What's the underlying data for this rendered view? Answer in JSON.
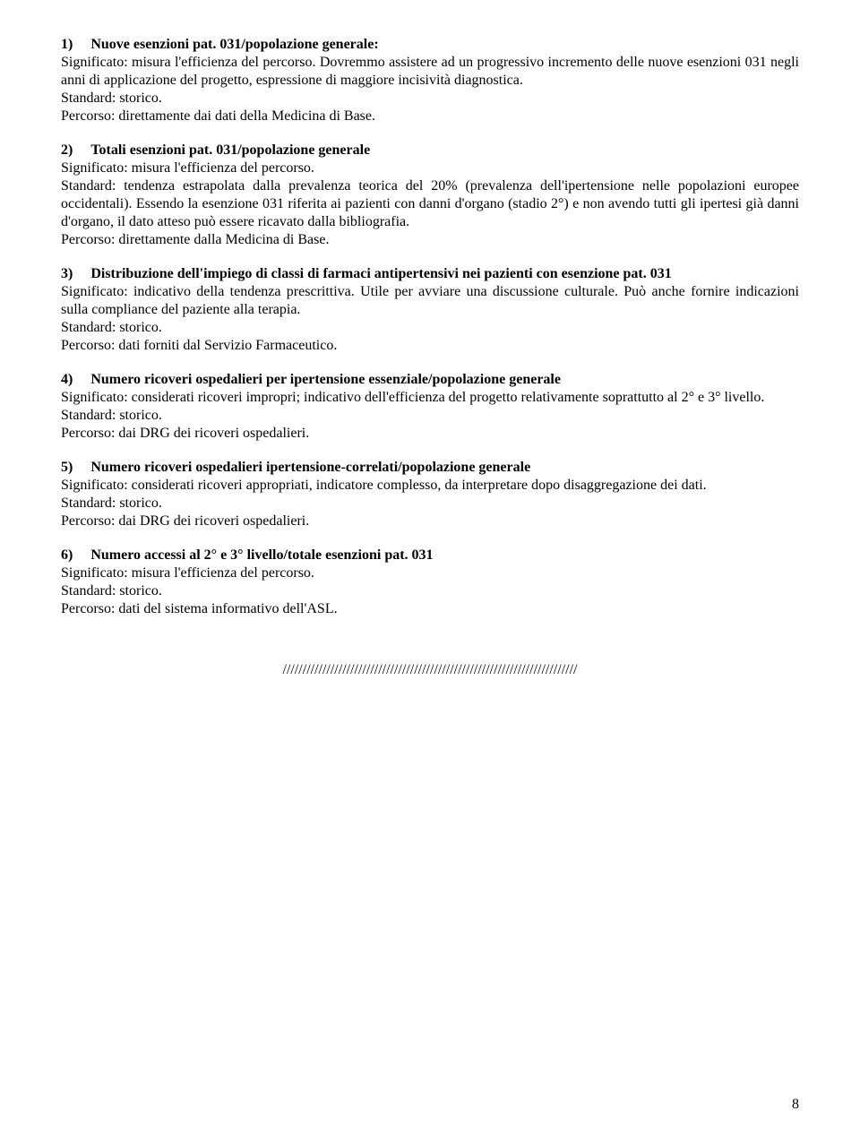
{
  "sections": [
    {
      "index": "1)",
      "title": "Nuove esenzioni pat. 031/popolazione generale:",
      "lines": [
        "Significato: misura l'efficienza del percorso. Dovremmo assistere ad un progressivo incremento delle nuove esenzioni 031 negli anni di applicazione del progetto, espressione di maggiore incisività diagnostica.",
        "Standard: storico.",
        "Percorso: direttamente dai dati della Medicina di Base."
      ]
    },
    {
      "index": "2)",
      "title": "Totali esenzioni pat. 031/popolazione generale",
      "lines": [
        "Significato: misura l'efficienza del percorso.",
        "Standard: tendenza estrapolata dalla prevalenza teorica del 20% (prevalenza dell'ipertensione nelle popolazioni europee occidentali). Essendo la esenzione 031 riferita ai pazienti con danni d'organo (stadio 2°) e non avendo tutti gli ipertesi già danni d'organo, il dato atteso può essere ricavato dalla bibliografia.",
        "Percorso: direttamente dalla Medicina di Base."
      ]
    },
    {
      "index": "3)",
      "title": "Distribuzione dell'impiego di classi di farmaci antipertensivi nei pazienti con esenzione pat. 031",
      "lines": [
        "Significato: indicativo della tendenza prescrittiva. Utile per avviare una discussione culturale. Può anche fornire indicazioni sulla compliance del paziente alla terapia.",
        "Standard: storico.",
        "Percorso: dati forniti dal Servizio Farmaceutico."
      ]
    },
    {
      "index": "4)",
      "title": "Numero ricoveri ospedalieri per ipertensione essenziale/popolazione generale",
      "lines": [
        "Significato: considerati ricoveri impropri; indicativo dell'efficienza del progetto relativamente soprattutto al 2° e 3° livello.",
        "Standard: storico.",
        "Percorso: dai DRG dei ricoveri ospedalieri."
      ]
    },
    {
      "index": "5)",
      "title": "Numero ricoveri ospedalieri ipertensione-correlati/popolazione generale",
      "lines": [
        "Significato: considerati ricoveri appropriati, indicatore complesso, da interpretare dopo disaggregazione dei dati.",
        "Standard: storico.",
        "Percorso: dai DRG dei ricoveri ospedalieri."
      ]
    },
    {
      "index": "6)",
      "title": "Numero accessi al 2° e 3° livello/totale esenzioni pat. 031",
      "lines": [
        "Significato: misura l'efficienza del percorso.",
        "Standard: storico.",
        "Percorso: dati del sistema informativo dell'ASL."
      ]
    }
  ],
  "separator": "//////////////////////////////////////////////////////////////////////////",
  "page_number": "8"
}
